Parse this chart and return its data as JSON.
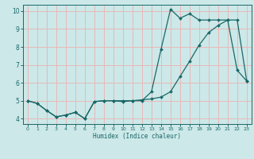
{
  "xlabel": "Humidex (Indice chaleur)",
  "bg_color": "#cce8e8",
  "grid_color": "#e8b8b8",
  "line_color": "#1a6868",
  "xlim": [
    -0.5,
    23.5
  ],
  "ylim": [
    3.7,
    10.35
  ],
  "xticks": [
    0,
    1,
    2,
    3,
    4,
    5,
    6,
    7,
    8,
    9,
    10,
    11,
    12,
    13,
    14,
    15,
    16,
    17,
    18,
    19,
    20,
    21,
    22,
    23
  ],
  "yticks": [
    4,
    5,
    6,
    7,
    8,
    9,
    10
  ],
  "line1_x": [
    0,
    1,
    2,
    3,
    4,
    5,
    6,
    7,
    8,
    9,
    10,
    11,
    12,
    13,
    14,
    15,
    16,
    17,
    18,
    19,
    20,
    21,
    22,
    23
  ],
  "line1_y": [
    5.0,
    4.85,
    4.45,
    4.1,
    4.2,
    4.35,
    4.0,
    4.95,
    5.0,
    5.0,
    5.0,
    5.0,
    5.0,
    5.5,
    7.85,
    10.1,
    9.6,
    9.85,
    9.5,
    9.5,
    9.5,
    9.5,
    6.7,
    6.1
  ],
  "line2_x": [
    0,
    1,
    2,
    3,
    4,
    5,
    6,
    7,
    8,
    9,
    10,
    11,
    12,
    13,
    14,
    15,
    16,
    17,
    18,
    19,
    20,
    21,
    22,
    23
  ],
  "line2_y": [
    5.0,
    4.85,
    4.45,
    4.1,
    4.2,
    4.35,
    4.0,
    4.95,
    5.0,
    5.0,
    4.95,
    5.0,
    5.05,
    5.1,
    5.2,
    5.5,
    6.35,
    7.2,
    8.1,
    8.8,
    9.2,
    9.5,
    9.5,
    6.1
  ]
}
